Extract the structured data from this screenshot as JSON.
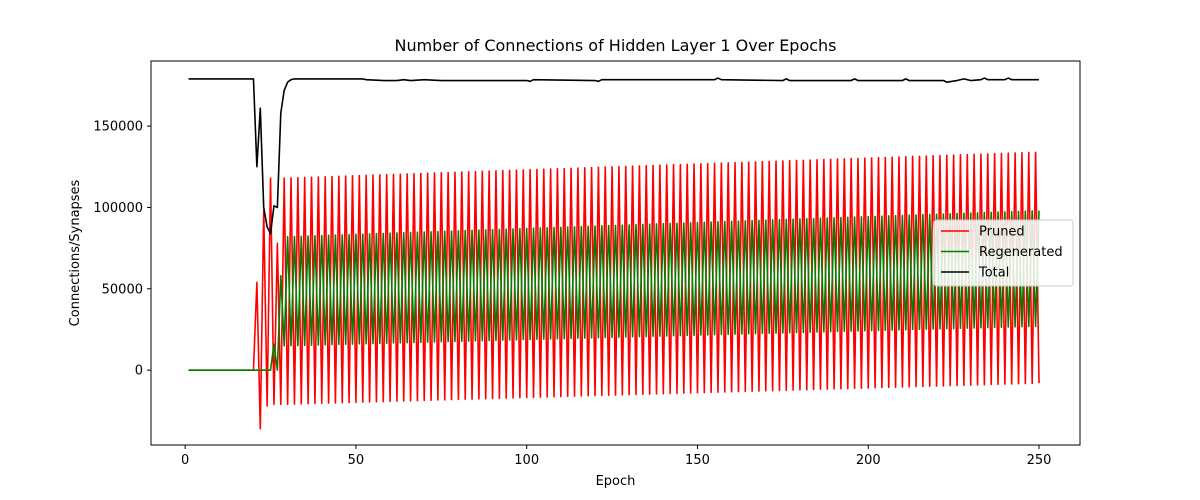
{
  "chart_data": {
    "type": "line",
    "title": "Number of Connections of Hidden Layer 1 Over Epochs",
    "xlabel": "Epoch",
    "ylabel": "Connections/Synapses",
    "xlim": [
      -10,
      262
    ],
    "ylim": [
      -46000,
      190000
    ],
    "x_ticks": [
      0,
      50,
      100,
      150,
      200,
      250
    ],
    "x_tick_labels": [
      "0",
      "50",
      "100",
      "150",
      "200",
      "250"
    ],
    "y_ticks": [
      0,
      50000,
      100000,
      150000
    ],
    "y_tick_labels": [
      "0",
      "50000",
      "100000",
      "150000"
    ],
    "legend_position": "center-right",
    "series": [
      {
        "name": "Pruned",
        "color": "#ff0000",
        "pattern": {
          "epochs": [
            1,
            250
          ],
          "flat_until_epoch": 20,
          "flat_value": 0,
          "transition": [
            [
              20,
              0
            ],
            [
              21,
              54000
            ],
            [
              22,
              -36000
            ],
            [
              23,
              98000
            ],
            [
              24,
              -22000
            ],
            [
              25,
              118000
            ],
            [
              26,
              -21000
            ],
            [
              27,
              78000
            ],
            [
              28,
              -21000
            ]
          ],
          "oscillation_start_epoch": 29,
          "period_epochs": 2,
          "high_start": 118000,
          "high_end": 134000,
          "low_start": -21000,
          "low_end": -8000
        }
      },
      {
        "name": "Regenerated",
        "color": "#008000",
        "pattern": {
          "epochs": [
            1,
            250
          ],
          "flat_until_epoch": 25,
          "flat_value": 0,
          "transition": [
            [
              25,
              0
            ],
            [
              26,
              16000
            ],
            [
              27,
              0
            ],
            [
              28,
              58000
            ],
            [
              29,
              15000
            ]
          ],
          "oscillation_start_epoch": 30,
          "period_epochs": 2,
          "high_start": 82000,
          "high_end": 98000,
          "low_start": 15000,
          "low_end": 27000
        }
      },
      {
        "name": "Total",
        "color": "#000000",
        "points": [
          [
            1,
            179000
          ],
          [
            20,
            179000
          ],
          [
            21,
            125000
          ],
          [
            22,
            161000
          ],
          [
            23,
            100000
          ],
          [
            24,
            88000
          ],
          [
            25,
            84000
          ],
          [
            26,
            101000
          ],
          [
            27,
            100000
          ],
          [
            28,
            158000
          ],
          [
            29,
            172000
          ],
          [
            30,
            177000
          ],
          [
            31,
            178500
          ],
          [
            32,
            179000
          ],
          [
            52,
            179000
          ],
          [
            53,
            178500
          ],
          [
            58,
            178000
          ],
          [
            62,
            178000
          ],
          [
            64,
            178500
          ],
          [
            66,
            178000
          ],
          [
            70,
            178500
          ],
          [
            75,
            178000
          ],
          [
            100,
            178000
          ],
          [
            101,
            177500
          ],
          [
            102,
            178500
          ],
          [
            120,
            178000
          ],
          [
            121,
            177500
          ],
          [
            122,
            178500
          ],
          [
            155,
            178500
          ],
          [
            156,
            179500
          ],
          [
            157,
            178500
          ],
          [
            175,
            178000
          ],
          [
            176,
            179000
          ],
          [
            177,
            178000
          ],
          [
            195,
            178000
          ],
          [
            196,
            179000
          ],
          [
            197,
            178000
          ],
          [
            210,
            178000
          ],
          [
            211,
            179000
          ],
          [
            212,
            178000
          ],
          [
            222,
            178000
          ],
          [
            223,
            177000
          ],
          [
            226,
            178000
          ],
          [
            228,
            179000
          ],
          [
            230,
            178000
          ],
          [
            233,
            178500
          ],
          [
            234,
            179500
          ],
          [
            235,
            178500
          ],
          [
            240,
            178500
          ],
          [
            241,
            179500
          ],
          [
            242,
            178500
          ],
          [
            250,
            178500
          ]
        ]
      }
    ]
  }
}
